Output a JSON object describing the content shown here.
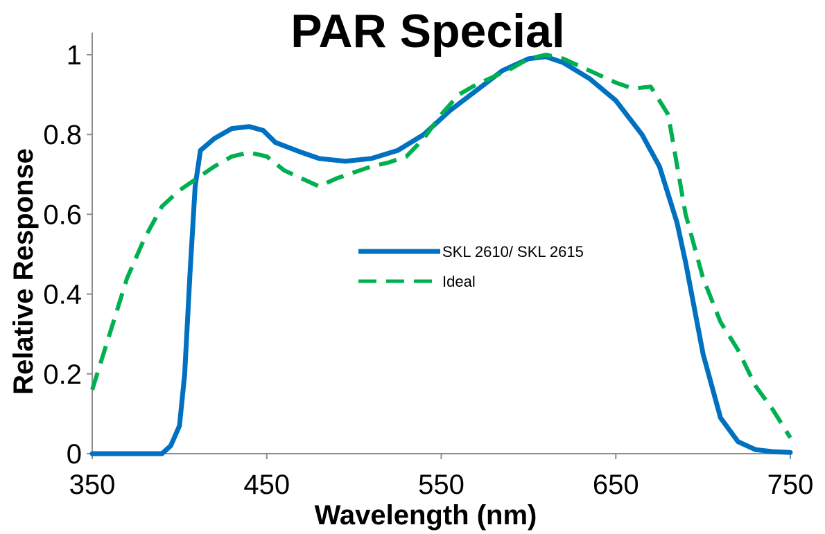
{
  "chart_data": {
    "type": "line",
    "title": "PAR Special",
    "xlabel": "Wavelength (nm)",
    "ylabel": "Relative Response",
    "xlim": [
      350,
      750
    ],
    "ylim": [
      0,
      1
    ],
    "x_ticks": [
      350,
      450,
      550,
      650,
      750
    ],
    "x_tick_labels": [
      "350",
      "450",
      "550",
      "650",
      "750"
    ],
    "y_ticks": [
      0,
      0.2,
      0.4,
      0.6,
      0.8,
      1
    ],
    "y_tick_labels": [
      "0",
      "0.2",
      "0.4",
      "0.6",
      "0.8",
      "1"
    ],
    "grid": false,
    "legend_position": "center",
    "series": [
      {
        "name": "SKL 2610/ SKL 2615",
        "color": "#0070c0",
        "style": "solid",
        "points": [
          [
            350,
            0.0
          ],
          [
            370,
            0.0
          ],
          [
            390,
            0.0
          ],
          [
            395,
            0.02
          ],
          [
            400,
            0.07
          ],
          [
            403,
            0.2
          ],
          [
            406,
            0.45
          ],
          [
            409,
            0.67
          ],
          [
            412,
            0.76
          ],
          [
            420,
            0.79
          ],
          [
            430,
            0.815
          ],
          [
            440,
            0.82
          ],
          [
            448,
            0.81
          ],
          [
            455,
            0.78
          ],
          [
            470,
            0.755
          ],
          [
            480,
            0.74
          ],
          [
            495,
            0.733
          ],
          [
            510,
            0.74
          ],
          [
            525,
            0.76
          ],
          [
            540,
            0.8
          ],
          [
            555,
            0.86
          ],
          [
            570,
            0.91
          ],
          [
            585,
            0.96
          ],
          [
            600,
            0.99
          ],
          [
            610,
            0.995
          ],
          [
            620,
            0.98
          ],
          [
            635,
            0.94
          ],
          [
            650,
            0.885
          ],
          [
            665,
            0.8
          ],
          [
            675,
            0.72
          ],
          [
            685,
            0.58
          ],
          [
            690,
            0.48
          ],
          [
            700,
            0.25
          ],
          [
            710,
            0.09
          ],
          [
            720,
            0.03
          ],
          [
            730,
            0.01
          ],
          [
            740,
            0.005
          ],
          [
            750,
            0.003
          ]
        ]
      },
      {
        "name": "Ideal",
        "color": "#00b050",
        "style": "dashed",
        "points": [
          [
            350,
            0.16
          ],
          [
            360,
            0.3
          ],
          [
            370,
            0.44
          ],
          [
            380,
            0.54
          ],
          [
            390,
            0.62
          ],
          [
            400,
            0.66
          ],
          [
            410,
            0.69
          ],
          [
            420,
            0.72
          ],
          [
            430,
            0.745
          ],
          [
            440,
            0.755
          ],
          [
            450,
            0.745
          ],
          [
            460,
            0.71
          ],
          [
            470,
            0.69
          ],
          [
            480,
            0.67
          ],
          [
            490,
            0.69
          ],
          [
            500,
            0.705
          ],
          [
            510,
            0.72
          ],
          [
            520,
            0.73
          ],
          [
            530,
            0.745
          ],
          [
            540,
            0.79
          ],
          [
            550,
            0.85
          ],
          [
            560,
            0.9
          ],
          [
            570,
            0.925
          ],
          [
            580,
            0.945
          ],
          [
            590,
            0.965
          ],
          [
            600,
            0.99
          ],
          [
            610,
            1.0
          ],
          [
            620,
            0.99
          ],
          [
            630,
            0.97
          ],
          [
            640,
            0.95
          ],
          [
            650,
            0.93
          ],
          [
            660,
            0.915
          ],
          [
            670,
            0.92
          ],
          [
            680,
            0.85
          ],
          [
            690,
            0.6
          ],
          [
            700,
            0.44
          ],
          [
            710,
            0.33
          ],
          [
            720,
            0.26
          ],
          [
            730,
            0.17
          ],
          [
            740,
            0.11
          ],
          [
            750,
            0.04
          ]
        ]
      }
    ]
  }
}
